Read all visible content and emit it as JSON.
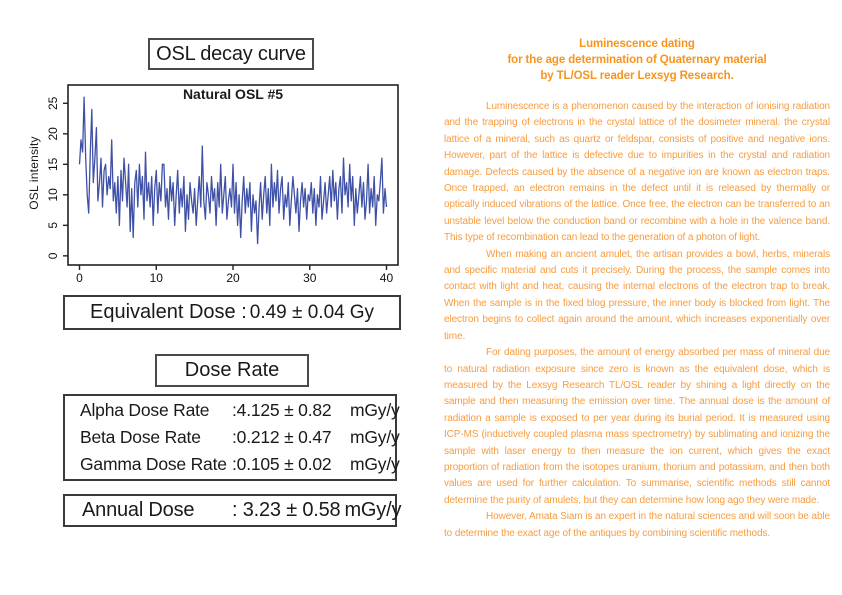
{
  "colors": {
    "accent_blue": "#3F51A7",
    "orange_heading": "#F7941E",
    "orange_body": "#F89C3E",
    "box_border": "#3A3A3A"
  },
  "left": {
    "decay_title": "OSL decay curve",
    "equivalent_dose": {
      "label": "Equivalent Dose :",
      "value": "0.49 ± 0.04",
      "unit": "Gy"
    },
    "dose_rate_title": "Dose Rate",
    "dose_rates": [
      {
        "label": "Alpha Dose Rate",
        "value": ":4.125 ± 0.82",
        "unit": "mGy/y"
      },
      {
        "label": "Beta Dose Rate",
        "value": ":0.212 ± 0.47",
        "unit": "mGy/y"
      },
      {
        "label": "Gamma Dose Rate",
        "value": ":0.105 ± 0.02",
        "unit": "mGy/y"
      }
    ],
    "annual_dose": {
      "label": "Annual Dose",
      "value": ": 3.23 ± 0.58",
      "unit": "mGy/y"
    }
  },
  "chart_data": {
    "type": "line",
    "title": "Natural OSL #5",
    "xlabel": "",
    "ylabel": "OSL intensity",
    "x_ticks": [
      0,
      10,
      20,
      30,
      40
    ],
    "y_ticks": [
      0,
      5,
      10,
      15,
      20,
      25
    ],
    "xlim": [
      -1.5,
      41.5
    ],
    "ylim": [
      -1.5,
      28
    ],
    "x_start": 0,
    "x_step": 0.2,
    "color": "#3F51A7",
    "grid": false,
    "legend": "none",
    "y": [
      15,
      19,
      17,
      26,
      16,
      10,
      7,
      17,
      24,
      12,
      16,
      21,
      9,
      12,
      16,
      8,
      14,
      15,
      10,
      13,
      11,
      19,
      9,
      12,
      7,
      13,
      5,
      14,
      9,
      16,
      12,
      8,
      15,
      4,
      11,
      3,
      12,
      14,
      8,
      15,
      10,
      13,
      6,
      17,
      9,
      12,
      8,
      13,
      5,
      11,
      14,
      7,
      12,
      9,
      15,
      15,
      8,
      11,
      6,
      13,
      9,
      12,
      5,
      10,
      14,
      7,
      11,
      8,
      13,
      4,
      10,
      6,
      12,
      9,
      7,
      11,
      5,
      9,
      13,
      8,
      18,
      9,
      6,
      12,
      10,
      7,
      13,
      9,
      11,
      5,
      12,
      8,
      15,
      7,
      10,
      13,
      6,
      9,
      11,
      8,
      15,
      7,
      12,
      5,
      10,
      3,
      9,
      13,
      7,
      11,
      8,
      12,
      4,
      10,
      7,
      9,
      2,
      8,
      12,
      6,
      10,
      13,
      7,
      11,
      5,
      15,
      8,
      12,
      9,
      14,
      7,
      11,
      13,
      6,
      10,
      8,
      12,
      5,
      9,
      13,
      10,
      7,
      11,
      4,
      9,
      12,
      8,
      11,
      6,
      10,
      9,
      12,
      7,
      11,
      5,
      10,
      8,
      13,
      6,
      9,
      12,
      7,
      10,
      13,
      8,
      14,
      9,
      12,
      6,
      11,
      13,
      7,
      16,
      10,
      12,
      8,
      15,
      9,
      13,
      5,
      11,
      7,
      10,
      13,
      8,
      12,
      6,
      9,
      15,
      7,
      11,
      8,
      13,
      5,
      10,
      9,
      12,
      16,
      7,
      11,
      8
    ]
  },
  "right": {
    "heading_lines": [
      "Luminescence dating",
      "for the age determination of Quaternary material",
      "by TL/OSL reader Lexsyg Research."
    ],
    "paragraphs": [
      "Luminescence is a phenomenon caused by the interaction of ionising radiation and the trapping of electrons in the crystal lattice of the dosimeter mineral. the crystal lattice of a mineral, such as quartz or feldspar, consists of positive and negative ions. However, part of the lattice is defective due to impurities in the crystal and radiation damage. Defects caused by the absence of a negative ion are known as electron traps. Once trapped, an electron remains in the defect until it is released by thermally or optically induced vibrations of the lattice. Once free, the electron can be transferred to an unstable level below the conduction band or recombine with a hole in the valence band. This type of recombination can lead to the generation of a photon of light.",
      "When making an ancient amulet, the artisan provides a bowl, herbs, minerals and specific material and cuts it precisely. During the process, the sample comes into contact with light and heat, causing the internal electrons of the electron trap to break. When the sample is in the fixed blog pressure, the inner body is blocked from light. The electron begins to collect again around the amount, which increases exponentially over time.",
      "For dating purposes, the amount of energy absorbed per mass of mineral due to natural radiation exposure since zero is known as the equivalent dose, which is measured by the Lexsyg Research TL/OSL reader by shining a light directly on the sample and then measuring the emission over time. The annual dose is the amount of radiation a sample is exposed to per year during its burial period. It is measured using ICP-MS (inductively coupled plasma mass spectrometry) by sublimating and ionizing the sample with laser energy to then measure the ion current, which gives the exact proportion of radiation from the isotopes uranium, thorium and potassium, and then both values are used for further calculation. To summarise, scientific methods still cannot determine the purity of amulets, but they can determine how long ago they were made.",
      "However, Amata Siam is an expert in the natural sciences and will soon be able to determine the exact age of the antiques by combining scientific methods."
    ]
  }
}
